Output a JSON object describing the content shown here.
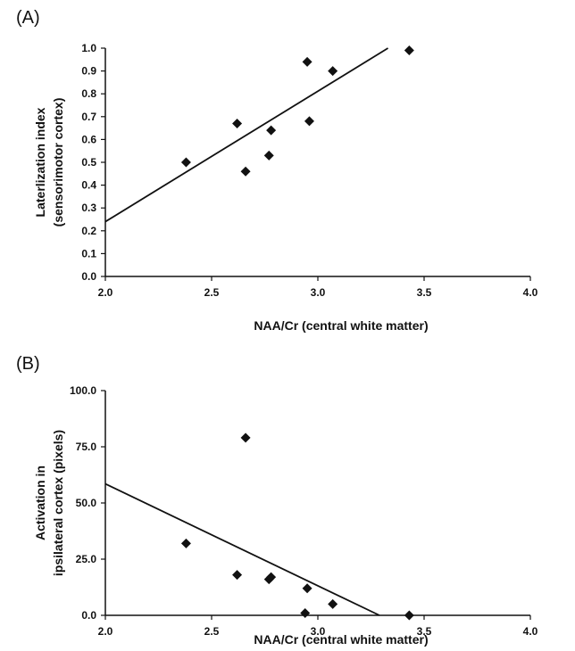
{
  "chart_data": [
    {
      "type": "scatter",
      "panel_label": "(A)",
      "xlabel": "NAA/Cr (central white matter)",
      "ylabel_line1": "Laterlization index",
      "ylabel_line2": "(sensorimotor cortex)",
      "xlim": [
        2.0,
        4.0
      ],
      "ylim": [
        0.0,
        1.0
      ],
      "x_ticks": [
        2.0,
        2.5,
        3.0,
        3.5,
        4.0
      ],
      "x_tick_labels": [
        "2.0",
        "2.5",
        "3.0",
        "3.5",
        "4.0"
      ],
      "y_ticks": [
        0.0,
        0.1,
        0.2,
        0.3,
        0.4,
        0.5,
        0.6,
        0.7,
        0.8,
        0.9,
        1.0
      ],
      "y_tick_labels": [
        "0.0",
        "0.1",
        "0.2",
        "0.3",
        "0.4",
        "0.5",
        "0.6",
        "0.7",
        "0.8",
        "0.9",
        "1.0"
      ],
      "points": [
        {
          "x": 2.38,
          "y": 0.5
        },
        {
          "x": 2.62,
          "y": 0.67
        },
        {
          "x": 2.66,
          "y": 0.46
        },
        {
          "x": 2.77,
          "y": 0.53
        },
        {
          "x": 2.78,
          "y": 0.64
        },
        {
          "x": 2.95,
          "y": 0.94
        },
        {
          "x": 2.96,
          "y": 0.68
        },
        {
          "x": 3.07,
          "y": 0.9
        },
        {
          "x": 3.43,
          "y": 0.99
        }
      ],
      "fit_line": {
        "x": [
          2.0,
          3.33
        ],
        "y": [
          0.24,
          1.0
        ]
      },
      "grid": false
    },
    {
      "type": "scatter",
      "panel_label": "(B)",
      "xlabel": "NAA/Cr (central white matter)",
      "ylabel_line1": "Activation in",
      "ylabel_line2": "ipsilateral cortex (pixels)",
      "xlim": [
        2.0,
        4.0
      ],
      "ylim": [
        0.0,
        100.0
      ],
      "x_ticks": [
        2.0,
        2.5,
        3.0,
        3.5,
        4.0
      ],
      "x_tick_labels": [
        "2.0",
        "2.5",
        "3.0",
        "3.5",
        "4.0"
      ],
      "y_ticks": [
        0,
        25,
        50,
        75,
        100
      ],
      "y_tick_labels": [
        "0.0",
        "25.0",
        "50.0",
        "75.0",
        "100.0"
      ],
      "points": [
        {
          "x": 2.38,
          "y": 32
        },
        {
          "x": 2.62,
          "y": 18
        },
        {
          "x": 2.66,
          "y": 79
        },
        {
          "x": 2.77,
          "y": 16
        },
        {
          "x": 2.78,
          "y": 17
        },
        {
          "x": 2.94,
          "y": 1
        },
        {
          "x": 2.95,
          "y": 12
        },
        {
          "x": 3.07,
          "y": 5
        },
        {
          "x": 3.43,
          "y": 0
        }
      ],
      "fit_line": {
        "x": [
          2.0,
          3.29
        ],
        "y": [
          58.5,
          0.0
        ]
      },
      "grid": false
    }
  ]
}
